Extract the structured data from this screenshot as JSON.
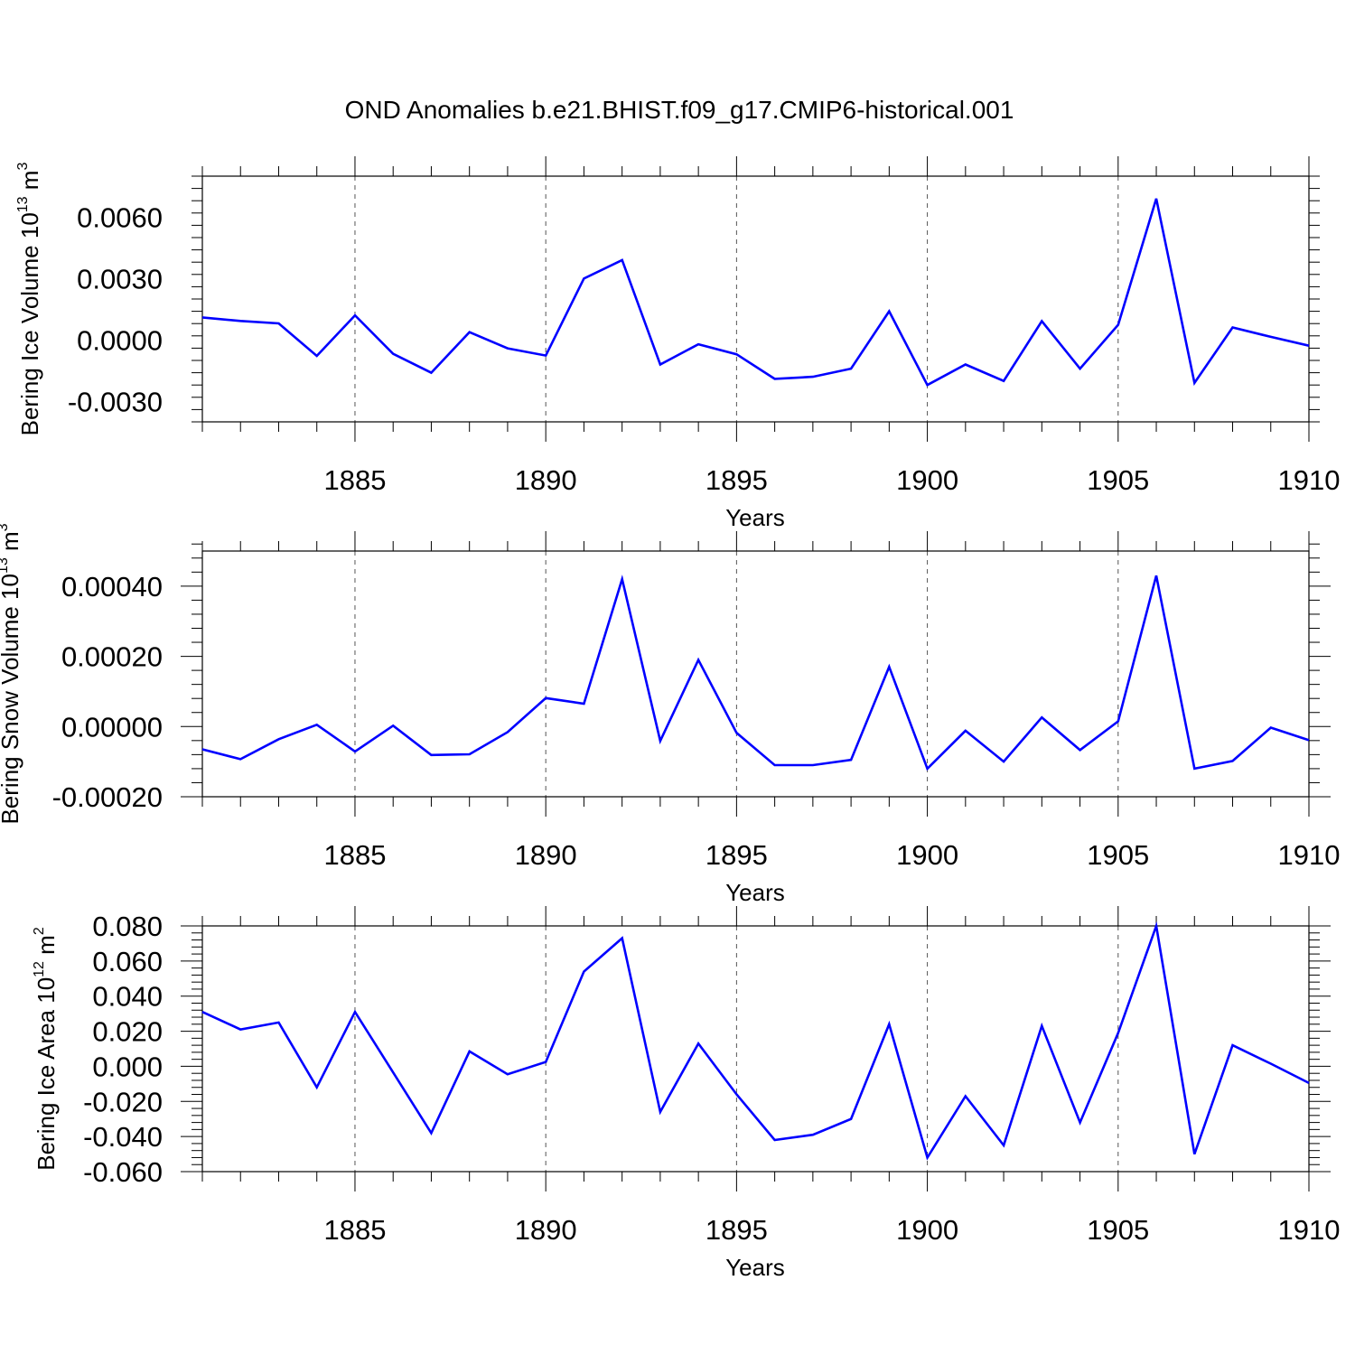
{
  "title": "OND Anomalies b.e21.BHIST.f09_g17.CMIP6-historical.001",
  "colors": {
    "line": "#0000ff",
    "axis": "#000000",
    "grid": "#555555"
  },
  "chart_data": [
    {
      "type": "line",
      "ylabel": {
        "text": "Bering Ice Volume 10",
        "exp": "13",
        "unit": " m",
        "unit_exp": "3"
      },
      "xlabel": "Years",
      "xlim": [
        1881,
        1910
      ],
      "ylim": [
        -0.004,
        0.008
      ],
      "yticks": [
        -0.003,
        0.0,
        0.003,
        0.006
      ],
      "ytick_labels": [
        "-0.0030",
        "0.0000",
        "0.0030",
        "0.0060"
      ],
      "xticks": [
        1885,
        1890,
        1895,
        1900,
        1905,
        1910
      ],
      "xtick_labels": [
        "1885",
        "1890",
        "1895",
        "1900",
        "1905",
        "1910"
      ],
      "grid": "vertical dashed at major x ticks",
      "x": [
        1881,
        1882,
        1883,
        1884,
        1885,
        1886,
        1887,
        1888,
        1889,
        1890,
        1891,
        1892,
        1893,
        1894,
        1895,
        1896,
        1897,
        1898,
        1899,
        1900,
        1901,
        1902,
        1903,
        1904,
        1905,
        1906,
        1907,
        1908,
        1909,
        1910
      ],
      "values": [
        0.0011,
        0.00093,
        0.00081,
        -0.00078,
        0.0012,
        -0.00068,
        -0.0016,
        0.00038,
        -0.00041,
        -0.00076,
        0.003,
        0.0039,
        -0.0012,
        -0.00021,
        -0.0007,
        -0.0019,
        -0.0018,
        -0.0014,
        0.0014,
        -0.0022,
        -0.0012,
        -0.002,
        0.00092,
        -0.0014,
        0.00074,
        0.0069,
        -0.0021,
        0.00061,
        0.00015,
        -0.00028
      ]
    },
    {
      "type": "line",
      "ylabel": {
        "text": "Bering Snow Volume 10",
        "exp": "13",
        "unit": " m",
        "unit_exp": "3"
      },
      "xlabel": "Years",
      "xlim": [
        1881,
        1910
      ],
      "ylim": [
        -0.0002,
        0.0005
      ],
      "yticks": [
        -0.0002,
        0.0,
        0.0002,
        0.0004
      ],
      "ytick_labels": [
        "-0.00020",
        "0.00000",
        "0.00020",
        "0.00040"
      ],
      "xticks": [
        1885,
        1890,
        1895,
        1900,
        1905,
        1910
      ],
      "xtick_labels": [
        "1885",
        "1890",
        "1895",
        "1900",
        "1905",
        "1910"
      ],
      "grid": "vertical dashed at major x ticks",
      "x": [
        1881,
        1882,
        1883,
        1884,
        1885,
        1886,
        1887,
        1888,
        1889,
        1890,
        1891,
        1892,
        1893,
        1894,
        1895,
        1896,
        1897,
        1898,
        1899,
        1900,
        1901,
        1902,
        1903,
        1904,
        1905,
        1906,
        1907,
        1908,
        1909,
        1910
      ],
      "values": [
        -6.5e-05,
        -9.3e-05,
        -3.6e-05,
        5.2e-06,
        -7.1e-05,
        2.6e-06,
        -8.1e-05,
        -7.9e-05,
        -1.6e-05,
        8.1e-05,
        6.5e-05,
        0.00042,
        -4.1e-05,
        0.00019,
        -1.8e-05,
        -0.00011,
        -0.00011,
        -9.5e-05,
        0.00017,
        -0.00012,
        -1.2e-05,
        -0.0001,
        2.6e-05,
        -6.7e-05,
        1.5e-05,
        0.00043,
        -0.00012,
        -9.8e-05,
        -3.1e-06,
        -3.9e-05
      ]
    },
    {
      "type": "line",
      "ylabel": {
        "text": "Bering Ice Area 10",
        "exp": "12",
        "unit": " m",
        "unit_exp": "2"
      },
      "xlabel": "Years",
      "xlim": [
        1881,
        1910
      ],
      "ylim": [
        -0.06,
        0.08
      ],
      "yticks": [
        -0.06,
        -0.04,
        -0.02,
        0.0,
        0.02,
        0.04,
        0.06,
        0.08
      ],
      "ytick_labels": [
        "-0.060",
        "-0.040",
        "-0.020",
        "0.000",
        "0.020",
        "0.040",
        "0.060",
        "0.080"
      ],
      "xticks": [
        1885,
        1890,
        1895,
        1900,
        1905,
        1910
      ],
      "xtick_labels": [
        "1885",
        "1890",
        "1895",
        "1900",
        "1905",
        "1910"
      ],
      "grid": "vertical dashed at major x ticks",
      "x": [
        1881,
        1882,
        1883,
        1884,
        1885,
        1886,
        1887,
        1888,
        1889,
        1890,
        1891,
        1892,
        1893,
        1894,
        1895,
        1896,
        1897,
        1898,
        1899,
        1900,
        1901,
        1902,
        1903,
        1904,
        1905,
        1906,
        1907,
        1908,
        1909,
        1910
      ],
      "values": [
        0.031,
        0.021,
        0.025,
        -0.012,
        0.031,
        -0.0035,
        -0.038,
        0.0085,
        -0.0045,
        0.0025,
        0.054,
        0.073,
        -0.026,
        0.013,
        -0.016,
        -0.042,
        -0.039,
        -0.03,
        0.024,
        -0.052,
        -0.017,
        -0.045,
        0.023,
        -0.032,
        0.019,
        0.08,
        -0.05,
        0.012,
        0.0015,
        -0.0095
      ]
    }
  ]
}
